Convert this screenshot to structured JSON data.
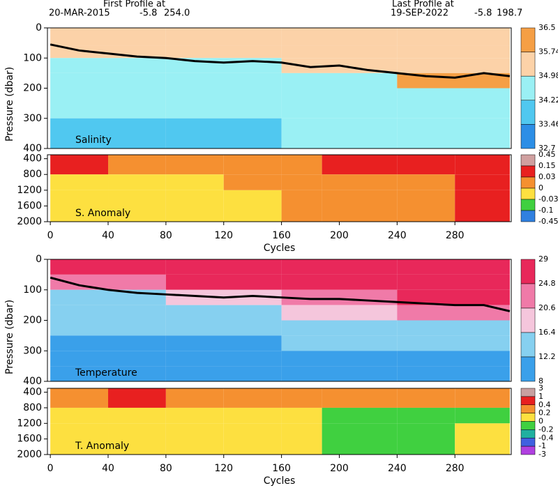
{
  "header": {
    "first_label": "First Profile at",
    "first_date": "20-MAR-2015",
    "first_lat": "-5.8",
    "first_lon": "254.0",
    "last_label": "Last Profile at",
    "last_date": "19-SEP-2022",
    "last_lat": "-5.8",
    "last_lon": "198.7"
  },
  "chart_data": [
    {
      "type": "contour",
      "title": "Salinity",
      "ylabel": "Pressure (dbar)",
      "xlim": [
        -2,
        319
      ],
      "ylim": [
        0,
        400
      ],
      "yticks": [
        0,
        100,
        200,
        300,
        400
      ],
      "y_reversed": true,
      "colorbar": {
        "levels": [
          36.5,
          35.74,
          34.98,
          34.22,
          33.46,
          32.7
        ],
        "colors": [
          "#f59f45",
          "#fcd2a8",
          "#9af0f4",
          "#50c8f0",
          "#2c8ee6"
        ]
      },
      "field": {
        "x_edges": [
          0,
          80,
          160,
          240,
          318
        ],
        "y_edges": [
          0,
          60,
          100,
          150,
          200,
          300,
          400
        ],
        "values": [
          [
            35.2,
            35.3,
            35.3,
            35.4
          ],
          [
            35.0,
            35.5,
            35.4,
            35.6
          ],
          [
            34.5,
            34.6,
            35.2,
            35.6
          ],
          [
            34.4,
            34.4,
            34.6,
            35.8
          ],
          [
            34.3,
            34.3,
            34.4,
            34.5
          ],
          [
            34.1,
            34.2,
            34.3,
            34.3
          ]
        ]
      },
      "contour": {
        "color": "#000000",
        "x": [
          0,
          20,
          40,
          60,
          80,
          100,
          120,
          140,
          160,
          180,
          200,
          220,
          240,
          260,
          280,
          300,
          318
        ],
        "values": [
          55,
          75,
          85,
          95,
          100,
          110,
          115,
          110,
          115,
          130,
          125,
          140,
          150,
          160,
          165,
          150,
          160
        ]
      }
    },
    {
      "type": "contour",
      "title": "S. Anomaly",
      "xlabel": "Cycles",
      "xlim": [
        -2,
        319
      ],
      "xticks": [
        0,
        40,
        80,
        120,
        160,
        200,
        240,
        280
      ],
      "ylim": [
        300,
        2000
      ],
      "yticks": [
        400,
        800,
        1200,
        1600,
        2000
      ],
      "y_reversed": true,
      "colorbar": {
        "levels": [
          0.45,
          0.15,
          0.03,
          0,
          -0.03,
          -0.1,
          -0.45
        ],
        "colors": [
          "#d0a0a0",
          "#e82020",
          "#f59030",
          "#fde040",
          "#40d040",
          "#3080e0"
        ]
      },
      "field": {
        "x_edges": [
          0,
          40,
          80,
          120,
          160,
          188,
          240,
          280,
          318
        ],
        "y_edges": [
          300,
          800,
          1200,
          2000
        ],
        "values": [
          [
            0.05,
            0.02,
            0.02,
            0.01,
            0.02,
            0.05,
            0.05,
            0.05
          ],
          [
            -0.01,
            -0.01,
            -0.01,
            0.01,
            0.01,
            0.01,
            0.02,
            0.04
          ],
          [
            -0.02,
            -0.01,
            -0.01,
            -0.01,
            0.01,
            0.01,
            0.01,
            0.04
          ]
        ]
      }
    },
    {
      "type": "contour",
      "title": "Temperature",
      "ylabel": "Pressure (dbar)",
      "xlim": [
        -2,
        319
      ],
      "ylim": [
        0,
        400
      ],
      "yticks": [
        0,
        100,
        200,
        300,
        400
      ],
      "y_reversed": true,
      "colorbar": {
        "levels": [
          29,
          24.8,
          20.6,
          16.4,
          12.2,
          8
        ],
        "colors": [
          "#e8285a",
          "#f07aa8",
          "#f5c6dc",
          "#86d0f0",
          "#3aa0ea"
        ]
      },
      "field": {
        "x_edges": [
          0,
          80,
          160,
          240,
          318
        ],
        "y_edges": [
          0,
          50,
          100,
          150,
          200,
          250,
          300,
          350,
          400
        ],
        "values": [
          [
            27,
            28,
            28,
            28
          ],
          [
            22,
            26,
            27,
            27
          ],
          [
            15,
            17,
            22,
            25
          ],
          [
            14,
            14,
            17,
            21
          ],
          [
            13,
            13,
            14,
            16
          ],
          [
            12,
            12,
            13,
            14
          ],
          [
            11,
            11,
            12,
            12
          ],
          [
            10,
            10,
            11,
            11
          ]
        ]
      },
      "contour": {
        "color": "#000000",
        "x": [
          0,
          20,
          40,
          60,
          80,
          100,
          120,
          140,
          160,
          180,
          200,
          220,
          240,
          260,
          280,
          300,
          318
        ],
        "values": [
          60,
          85,
          100,
          110,
          115,
          120,
          125,
          120,
          125,
          130,
          130,
          135,
          140,
          145,
          150,
          150,
          170
        ]
      }
    },
    {
      "type": "contour",
      "title": "T. Anomaly",
      "xlabel": "Cycles",
      "xlim": [
        -2,
        319
      ],
      "xticks": [
        0,
        40,
        80,
        120,
        160,
        200,
        240,
        280
      ],
      "ylim": [
        300,
        2000
      ],
      "yticks": [
        400,
        800,
        1200,
        1600,
        2000
      ],
      "y_reversed": true,
      "colorbar": {
        "levels": [
          3,
          1,
          0.4,
          0.2,
          0,
          -0.2,
          -0.4,
          -1,
          -3
        ],
        "colors": [
          "#c8a0a0",
          "#e82020",
          "#f59030",
          "#fde040",
          "#40d040",
          "#20b0a0",
          "#4060e0",
          "#b040e0"
        ]
      },
      "field": {
        "x_edges": [
          0,
          40,
          80,
          120,
          160,
          188,
          240,
          280,
          318
        ],
        "y_edges": [
          300,
          800,
          1200,
          2000
        ],
        "values": [
          [
            0.3,
            0.5,
            0.3,
            0.3,
            0.2,
            0.3,
            0.3,
            0.2
          ],
          [
            0.1,
            0.1,
            0.05,
            0.1,
            0.1,
            -0.1,
            -0.1,
            -0.1
          ],
          [
            0.1,
            0.05,
            0.05,
            0.05,
            0.05,
            -0.1,
            -0.1,
            0.1
          ]
        ]
      }
    }
  ]
}
